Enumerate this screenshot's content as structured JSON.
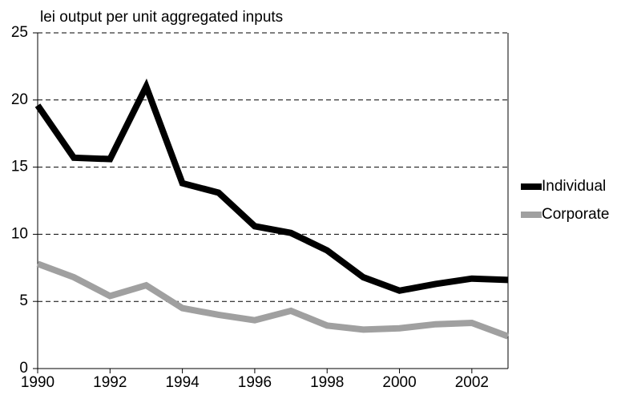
{
  "chart_data": {
    "type": "line",
    "y_label": "lei output per unit aggregated inputs",
    "x": [
      1990,
      1991,
      1992,
      1993,
      1994,
      1995,
      1996,
      1997,
      1998,
      1999,
      2000,
      2001,
      2002,
      2003
    ],
    "series": [
      {
        "name": "Individual",
        "color": "#000000",
        "values": [
          19.6,
          15.7,
          15.6,
          21.0,
          13.8,
          13.1,
          10.6,
          10.1,
          8.8,
          6.8,
          5.8,
          6.3,
          6.7,
          6.6
        ]
      },
      {
        "name": "Corporate",
        "color": "#a0a0a0",
        "values": [
          7.8,
          6.8,
          5.4,
          6.2,
          4.5,
          4.0,
          3.6,
          4.3,
          3.2,
          2.9,
          3.0,
          3.3,
          3.4,
          2.4
        ]
      }
    ],
    "xlim": [
      1990,
      2003
    ],
    "xticks": [
      1990,
      1992,
      1994,
      1996,
      1998,
      2000,
      2002
    ],
    "ylim": [
      0,
      25
    ],
    "yticks": [
      0,
      5,
      10,
      15,
      20,
      25
    ],
    "grid": true,
    "legend": "right"
  }
}
